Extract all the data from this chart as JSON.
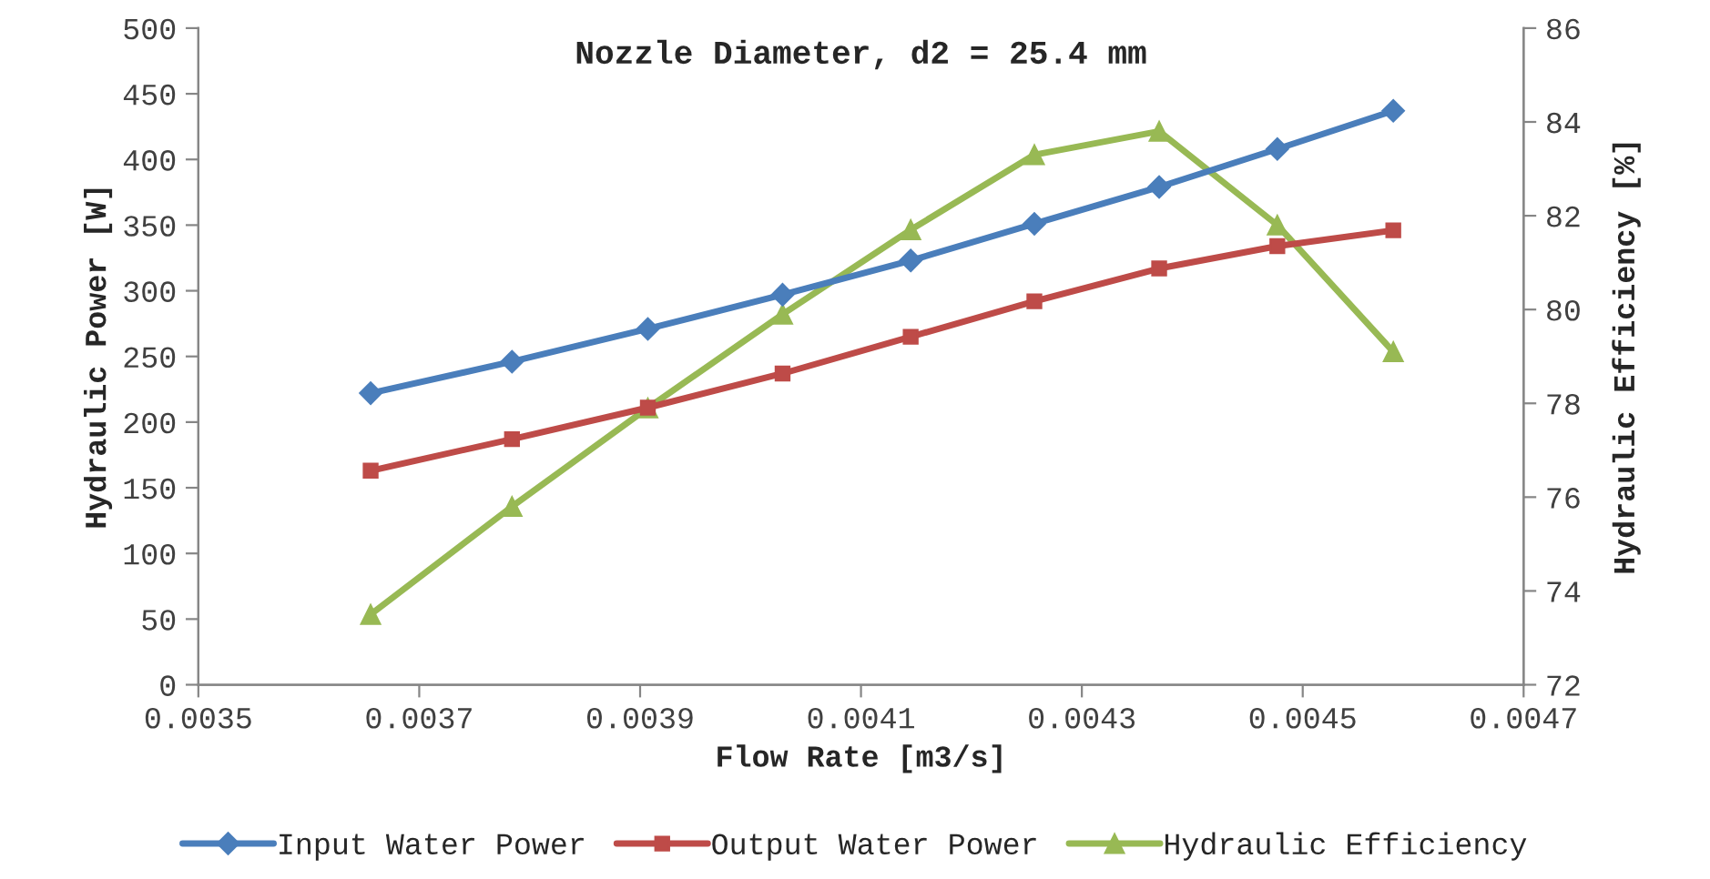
{
  "chart_data": {
    "type": "line",
    "title": "Nozzle Diameter, d2 = 25.4 mm",
    "xlabel": "Flow Rate [m3/s]",
    "ylabel": "Hydraulic Power [W]",
    "y2label": "Hydraulic Efficiency [%]",
    "x": [
      0.003656,
      0.003784,
      0.003907,
      0.004029,
      0.004145,
      0.004257,
      0.00437,
      0.004477,
      0.004582
    ],
    "series": [
      {
        "name": "Input Water Power",
        "color": "#4a7ebb",
        "marker": "diamond",
        "values": [
          222,
          246,
          271,
          297,
          323,
          351,
          379,
          408,
          437
        ]
      },
      {
        "name": "Output Water Power",
        "color": "#be4b48",
        "marker": "square",
        "values": [
          163,
          187,
          211,
          237,
          265,
          292,
          317,
          334,
          346
        ]
      },
      {
        "name": "Hydraulic Efficiency",
        "color": "#98b954",
        "marker": "triangle",
        "axis": "y2",
        "values": [
          73.5,
          75.8,
          77.9,
          79.9,
          81.7,
          83.3,
          83.8,
          81.8,
          79.1
        ]
      }
    ],
    "xlim": [
      0.0035,
      0.0047
    ],
    "xticks": [
      0.0035,
      0.0037,
      0.0039,
      0.0041,
      0.0043,
      0.0045,
      0.0047
    ],
    "ylim": [
      0,
      500
    ],
    "yticks": [
      0,
      50,
      100,
      150,
      200,
      250,
      300,
      350,
      400,
      450,
      500
    ],
    "y2lim": [
      72,
      86
    ],
    "y2ticks": [
      72,
      74,
      76,
      78,
      80,
      82,
      84,
      86
    ],
    "grid": false,
    "legend": "bottom"
  }
}
